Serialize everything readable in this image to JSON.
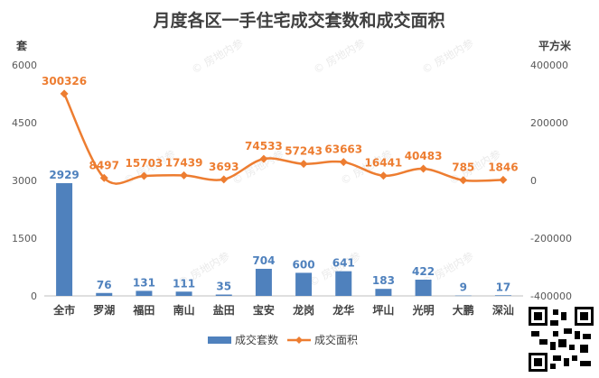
{
  "chart_data": {
    "type": "bar+line",
    "title": "月度各区一手住宅成交套数和成交面积",
    "y_left_unit": "套",
    "y_right_unit": "平方米",
    "categories": [
      "全市",
      "罗湖",
      "福田",
      "南山",
      "盐田",
      "宝安",
      "龙岗",
      "龙华",
      "坪山",
      "光明",
      "大鹏",
      "深汕"
    ],
    "y_left_ticks": [
      "0",
      "1500",
      "3000",
      "4500",
      "6000"
    ],
    "y_right_ticks": [
      "-400000",
      "-200000",
      "0",
      "200000",
      "400000"
    ],
    "y_left_range": [
      0,
      6000
    ],
    "y_right_range": [
      -400000,
      400000
    ],
    "series": [
      {
        "name": "成交套数",
        "kind": "bar",
        "axis": "left",
        "color": "#4f81bd",
        "label_color": "#4f81bd",
        "values": [
          2929,
          76,
          131,
          111,
          35,
          704,
          600,
          641,
          183,
          422,
          9,
          17
        ]
      },
      {
        "name": "成交面积",
        "kind": "line",
        "axis": "right",
        "color": "#ed7d31",
        "label_color": "#ed7d31",
        "values": [
          300326,
          8497,
          15703,
          17439,
          3693,
          74533,
          57243,
          63663,
          16441,
          40483,
          785,
          1846
        ]
      }
    ],
    "legend_position": "bottom",
    "watermark": "房地内参"
  }
}
